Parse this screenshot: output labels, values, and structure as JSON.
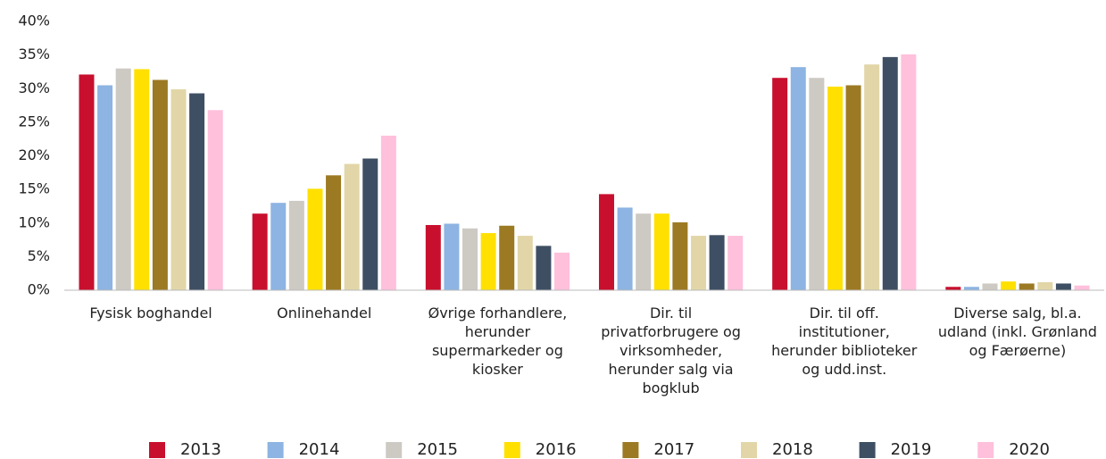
{
  "chart_data": {
    "type": "bar",
    "categories": [
      "Fysisk boghandel",
      "Onlinehandel",
      "Øvrige forhandlere, herunder supermarkeder og kiosker",
      "Dir. til privatforbrugere og virksomheder, herunder salg via bogklub",
      "Dir. til off. institutioner, herunder biblioteker og udd.inst.",
      "Diverse salg, bl.a. udland (inkl. Grønland og Færøerne)"
    ],
    "series": [
      {
        "name": "2013",
        "color": "#c8102e",
        "values": [
          32.1,
          11.4,
          9.7,
          14.3,
          31.6,
          0.5
        ]
      },
      {
        "name": "2014",
        "color": "#8db4e2",
        "values": [
          30.5,
          13.0,
          9.9,
          12.3,
          33.2,
          0.5
        ]
      },
      {
        "name": "2015",
        "color": "#cdc9c3",
        "values": [
          33.0,
          13.3,
          9.2,
          11.4,
          31.6,
          1.0
        ]
      },
      {
        "name": "2016",
        "color": "#ffe000",
        "values": [
          32.9,
          15.1,
          8.5,
          11.4,
          30.3,
          1.3
        ]
      },
      {
        "name": "2017",
        "color": "#9c7a24",
        "values": [
          31.3,
          17.1,
          9.6,
          10.1,
          30.5,
          1.0
        ]
      },
      {
        "name": "2018",
        "color": "#e2d6a8",
        "values": [
          29.9,
          18.8,
          8.1,
          8.1,
          33.6,
          1.2
        ]
      },
      {
        "name": "2019",
        "color": "#3f4f63",
        "values": [
          29.3,
          19.6,
          6.6,
          8.2,
          34.7,
          1.0
        ]
      },
      {
        "name": "2020",
        "color": "#ffc0dc",
        "values": [
          26.8,
          23.0,
          5.6,
          8.1,
          35.1,
          0.7
        ]
      }
    ],
    "ylim": [
      0,
      40
    ],
    "yticks": [
      {
        "value": 0,
        "label": "0%"
      },
      {
        "value": 5,
        "label": "5%"
      },
      {
        "value": 10,
        "label": "10%"
      },
      {
        "value": 15,
        "label": "15%"
      },
      {
        "value": 20,
        "label": "20%"
      },
      {
        "value": 25,
        "label": "25%"
      },
      {
        "value": 30,
        "label": "30%"
      },
      {
        "value": 35,
        "label": "35%"
      },
      {
        "value": 40,
        "label": "40%"
      }
    ],
    "grid": false,
    "legend": "bottom"
  }
}
